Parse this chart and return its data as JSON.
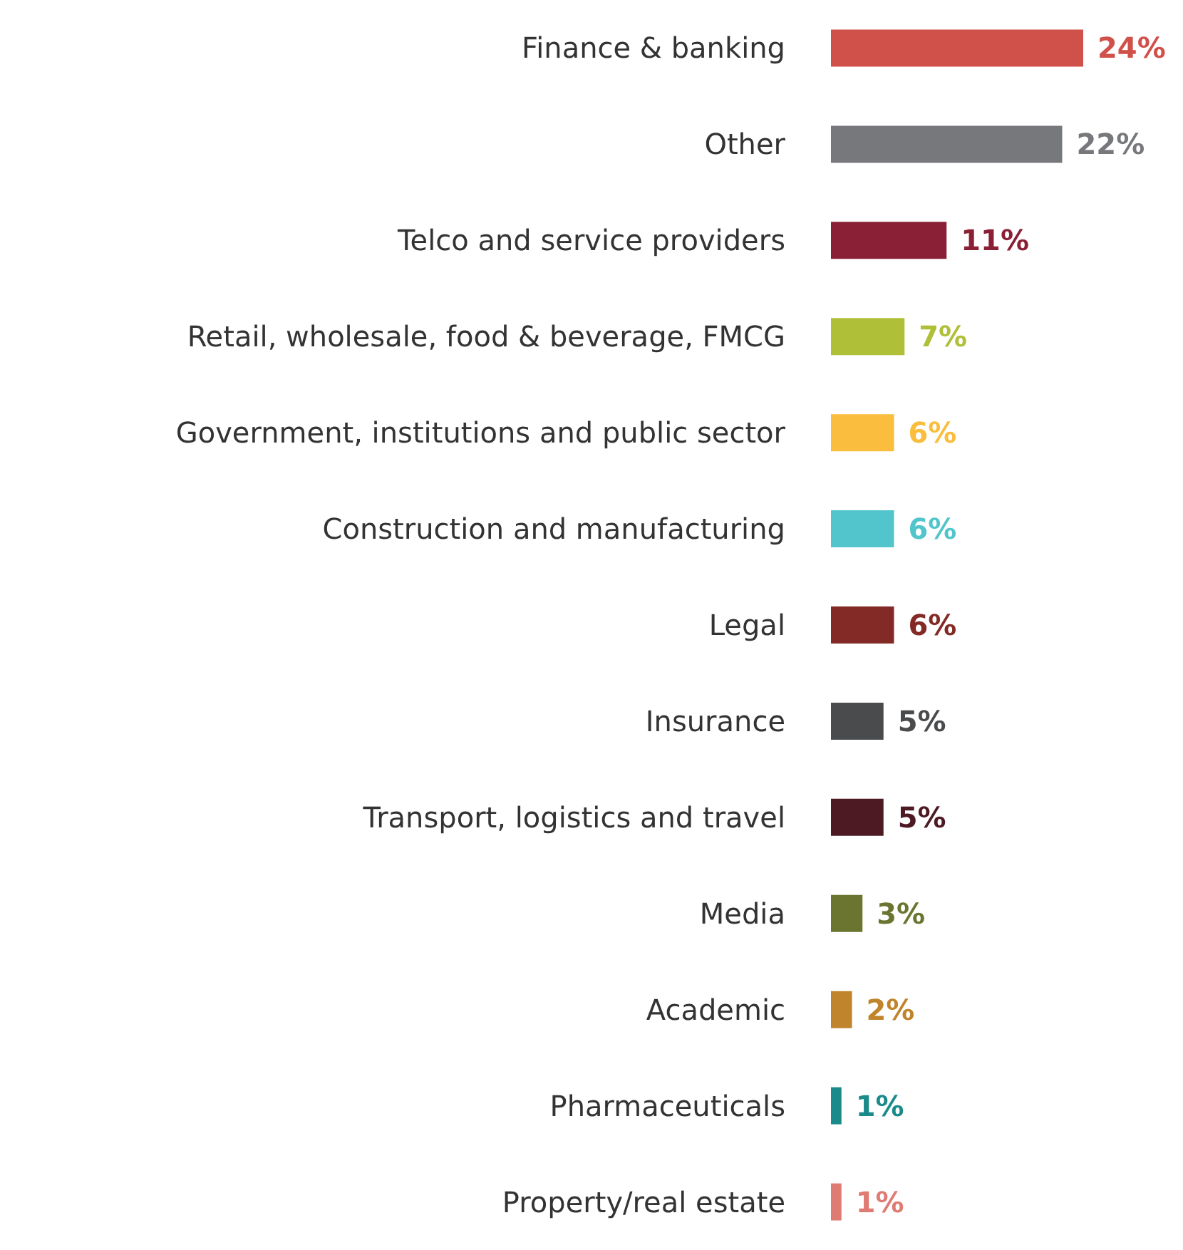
{
  "chart_data": {
    "type": "bar",
    "orientation": "horizontal",
    "categories": [
      "Finance & banking",
      "Other",
      "Telco and service providers",
      "Retail, wholesale, food & beverage, FMCG",
      "Government, institutions and public sector",
      "Construction and manufacturing",
      "Legal",
      "Insurance",
      "Transport, logistics and travel",
      "Media",
      "Academic",
      "Pharmaceuticals",
      "Property/real estate"
    ],
    "values": [
      24,
      22,
      11,
      7,
      6,
      6,
      6,
      5,
      5,
      3,
      2,
      1,
      1
    ],
    "value_labels": [
      "24%",
      "22%",
      "11%",
      "7%",
      "6%",
      "6%",
      "6%",
      "5%",
      "5%",
      "3%",
      "2%",
      "1%",
      "1%"
    ],
    "colors": [
      "#d0504a",
      "#77787b",
      "#8a2035",
      "#afbf37",
      "#fbbd3d",
      "#52c5cc",
      "#832a26",
      "#4a4b4d",
      "#4d1a24",
      "#6b7530",
      "#c0842c",
      "#1a8a8a",
      "#e07b74"
    ]
  }
}
